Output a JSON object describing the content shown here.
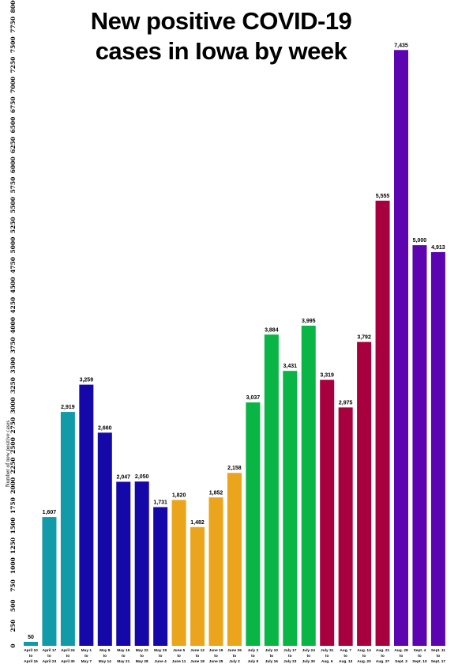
{
  "title_lines": [
    "New positive COVID-19",
    "cases in Iowa by week"
  ],
  "chart_data": {
    "type": "bar",
    "title": "New positive COVID-19 cases in Iowa by week",
    "xlabel": "",
    "ylabel": "Number of new positive cases",
    "ylim": [
      0,
      8000
    ],
    "ytick_step": 250,
    "grid": false,
    "legend": "none",
    "categories": [
      [
        "April 10",
        "to",
        "April 16"
      ],
      [
        "April 17",
        "to",
        "April 23"
      ],
      [
        "April 24",
        "to",
        "April 30"
      ],
      [
        "May 1",
        "to",
        "May 7"
      ],
      [
        "May 8",
        "to",
        "May 14"
      ],
      [
        "May 15",
        "to",
        "May 21"
      ],
      [
        "May 22",
        "to",
        "May 28"
      ],
      [
        "May 29",
        "to",
        "June 4"
      ],
      [
        "June 5",
        "to",
        "June 11"
      ],
      [
        "June 12",
        "to",
        "June 18"
      ],
      [
        "June 19",
        "to",
        "June 25"
      ],
      [
        "June 26",
        "to",
        "July 2"
      ],
      [
        "July 3",
        "to",
        "July 9"
      ],
      [
        "July 10",
        "to",
        "July 16"
      ],
      [
        "July 17",
        "to",
        "July 23"
      ],
      [
        "July 24",
        "to",
        "July 30"
      ],
      [
        "July 31",
        "to",
        "Aug. 6"
      ],
      [
        "Aug. 7",
        "to",
        "Aug. 13"
      ],
      [
        "Aug. 14",
        "to",
        "Aug. 20"
      ],
      [
        "Aug. 21",
        "to",
        "Aug. 27"
      ],
      [
        "Aug. 28",
        "to",
        "Sept. 3"
      ],
      [
        "Sept. 4",
        "to",
        "Sept. 10"
      ],
      [
        "Sept. 11",
        "to",
        "Sept. 17"
      ]
    ],
    "values": [
      50,
      1607,
      2919,
      3259,
      2660,
      2047,
      2050,
      1731,
      1820,
      1482,
      1852,
      2158,
      3037,
      3884,
      3431,
      3995,
      3319,
      2975,
      3792,
      5555,
      7435,
      5000,
      4913
    ],
    "value_labels": [
      "50",
      "1,607",
      "2,919",
      "3,259",
      "2,660",
      "2,047",
      "2,050",
      "1,731",
      "1,820",
      "1,482",
      "1,852",
      "2,158",
      "3,037",
      "3,884",
      "3,431",
      "3,995",
      "3,319",
      "2,975",
      "3,792",
      "5,555",
      "7,435",
      "5,000",
      "4,913"
    ],
    "bar_colors": [
      "#119aa8",
      "#119aa8",
      "#119aa8",
      "#1508a8",
      "#1508a8",
      "#1508a8",
      "#1508a8",
      "#1508a8",
      "#eaa51c",
      "#eaa51c",
      "#eaa51c",
      "#eaa51c",
      "#08b545",
      "#08b545",
      "#08b545",
      "#08b545",
      "#a8003e",
      "#a8003e",
      "#a8003e",
      "#a8003e",
      "#5b04b0",
      "#5b04b0",
      "#5b04b0"
    ]
  }
}
